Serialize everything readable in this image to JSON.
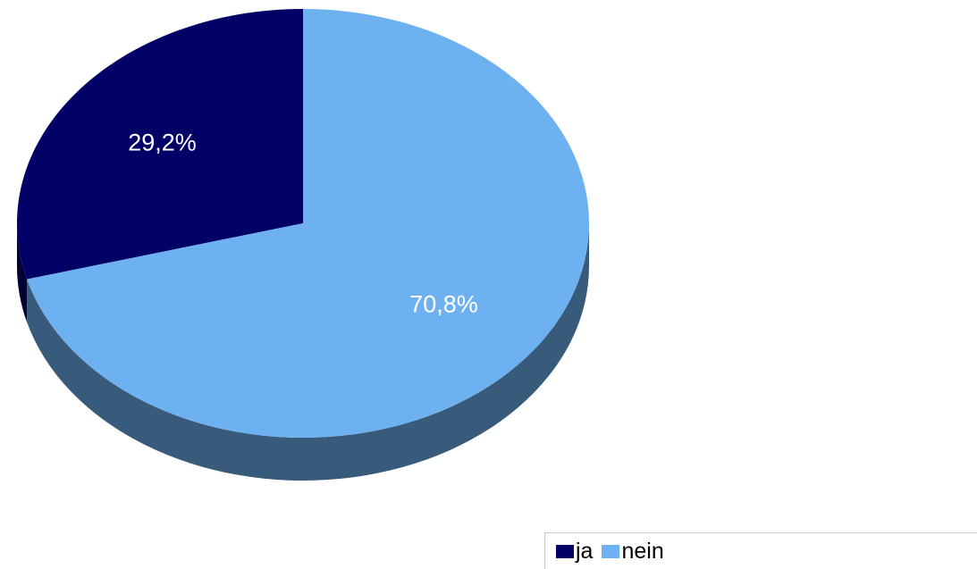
{
  "chart_data": {
    "type": "pie",
    "style": "3d",
    "categories": [
      "ja",
      "nein"
    ],
    "values": [
      29.2,
      70.8
    ],
    "data_labels": [
      "29,2%",
      "70,8%"
    ],
    "colors": [
      "#000066",
      "#6eb1f1"
    ],
    "side_colors": [
      "#000033",
      "#395b7b"
    ],
    "legend_position": "bottom-right",
    "title": ""
  },
  "legend": {
    "items": [
      {
        "label": "ja",
        "color": "#000066"
      },
      {
        "label": "nein",
        "color": "#6eb1f1"
      }
    ]
  }
}
